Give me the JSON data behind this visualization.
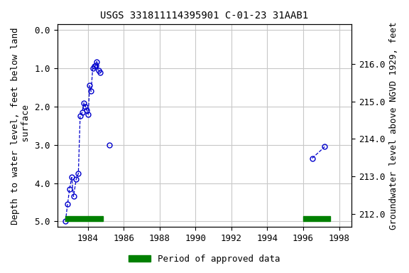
{
  "title": "USGS 331811114395901 C-01-23 31AAB1",
  "ylabel_left": "Depth to water level, feet below land\n surface",
  "ylabel_right": "Groundwater level above NGVD 1929, feet",
  "xlim": [
    1982.3,
    1998.7
  ],
  "ylim_left": [
    5.15,
    -0.15
  ],
  "ylim_right": [
    211.65,
    217.05
  ],
  "xticks": [
    1984,
    1986,
    1988,
    1990,
    1992,
    1994,
    1996,
    1998
  ],
  "yticks_left": [
    0.0,
    1.0,
    2.0,
    3.0,
    4.0,
    5.0
  ],
  "yticks_right": [
    212.0,
    213.0,
    214.0,
    215.0,
    216.0
  ],
  "segments": [
    {
      "x": [
        1982.75,
        1982.87,
        1982.98,
        1983.1,
        1983.2,
        1983.35,
        1983.47,
        1983.57,
        1983.68,
        1983.78,
        1983.87,
        1983.95,
        1984.02,
        1984.1,
        1984.18,
        1984.27,
        1984.35,
        1984.43,
        1984.5,
        1984.6,
        1984.7
      ],
      "y": [
        5.0,
        4.55,
        4.15,
        3.85,
        4.35,
        3.9,
        3.75,
        2.25,
        2.15,
        1.9,
        2.0,
        2.1,
        2.2,
        1.45,
        1.6,
        1.0,
        0.95,
        0.93,
        0.82,
        1.05,
        1.1
      ]
    },
    {
      "x": [
        1985.2
      ],
      "y": [
        3.0
      ]
    },
    {
      "x": [
        1996.5,
        1997.2
      ],
      "y": [
        3.35,
        3.05
      ]
    }
  ],
  "approved_bars": [
    {
      "x_start": 1982.75,
      "x_end": 1984.85
    },
    {
      "x_start": 1996.0,
      "x_end": 1997.5
    }
  ],
  "bar_y": 5.0,
  "bar_height": 0.14,
  "line_color": "#0000cc",
  "marker_color": "#0000cc",
  "approved_color": "#008000",
  "background_color": "#ffffff",
  "grid_color": "#c8c8c8",
  "title_fontsize": 10,
  "axis_label_fontsize": 9,
  "tick_fontsize": 9
}
